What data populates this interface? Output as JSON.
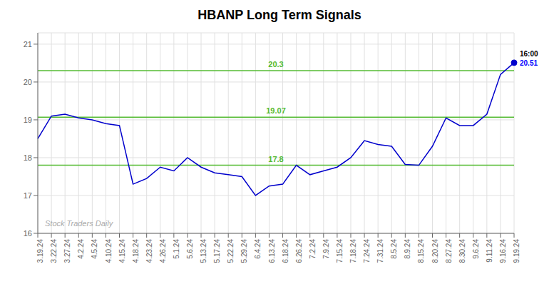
{
  "chart_data": {
    "type": "line",
    "title": "HBANP Long Term Signals",
    "categories": [
      "3.19.24",
      "3.22.24",
      "3.27.24",
      "4.2.24",
      "4.5.24",
      "4.10.24",
      "4.15.24",
      "4.18.24",
      "4.23.24",
      "4.26.24",
      "5.1.24",
      "5.6.24",
      "5.13.24",
      "5.17.24",
      "5.22.24",
      "5.29.24",
      "6.4.24",
      "6.13.24",
      "6.18.24",
      "6.26.24",
      "7.2.24",
      "7.9.24",
      "7.15.24",
      "7.18.24",
      "7.24.24",
      "7.31.24",
      "8.5.24",
      "8.9.24",
      "8.15.24",
      "8.20.24",
      "8.27.24",
      "8.30.24",
      "9.6.24",
      "9.11.24",
      "9.16.24",
      "9.19.24"
    ],
    "values": [
      18.5,
      19.1,
      19.15,
      19.05,
      19.0,
      18.9,
      18.85,
      17.3,
      17.45,
      17.75,
      17.65,
      18.0,
      17.75,
      17.6,
      17.55,
      17.5,
      17.0,
      17.25,
      17.3,
      17.8,
      17.55,
      17.65,
      17.75,
      18.0,
      18.45,
      18.35,
      18.3,
      17.82,
      17.8,
      18.3,
      19.05,
      18.85,
      18.85,
      19.15,
      20.2,
      20.51
    ],
    "color": "#0000cc",
    "ylim": [
      16.0,
      21.3
    ],
    "yticks": [
      16,
      17,
      18,
      19,
      20,
      21
    ],
    "grid": true,
    "hlines": [
      {
        "value": 20.3,
        "label": "20.3",
        "color": "#55bb33"
      },
      {
        "value": 19.07,
        "label": "19.07",
        "color": "#55bb33"
      },
      {
        "value": 17.8,
        "label": "17.8",
        "color": "#55bb33"
      }
    ],
    "annotations": [
      {
        "text": "16:00",
        "color": "black",
        "x": "9.19.24",
        "y": 20.51
      },
      {
        "text": "20.51",
        "color": "blue",
        "x": "9.19.24",
        "y": 20.51
      },
      {
        "text": "Stock Traders Daily",
        "color": "#aaaaaa"
      }
    ]
  }
}
